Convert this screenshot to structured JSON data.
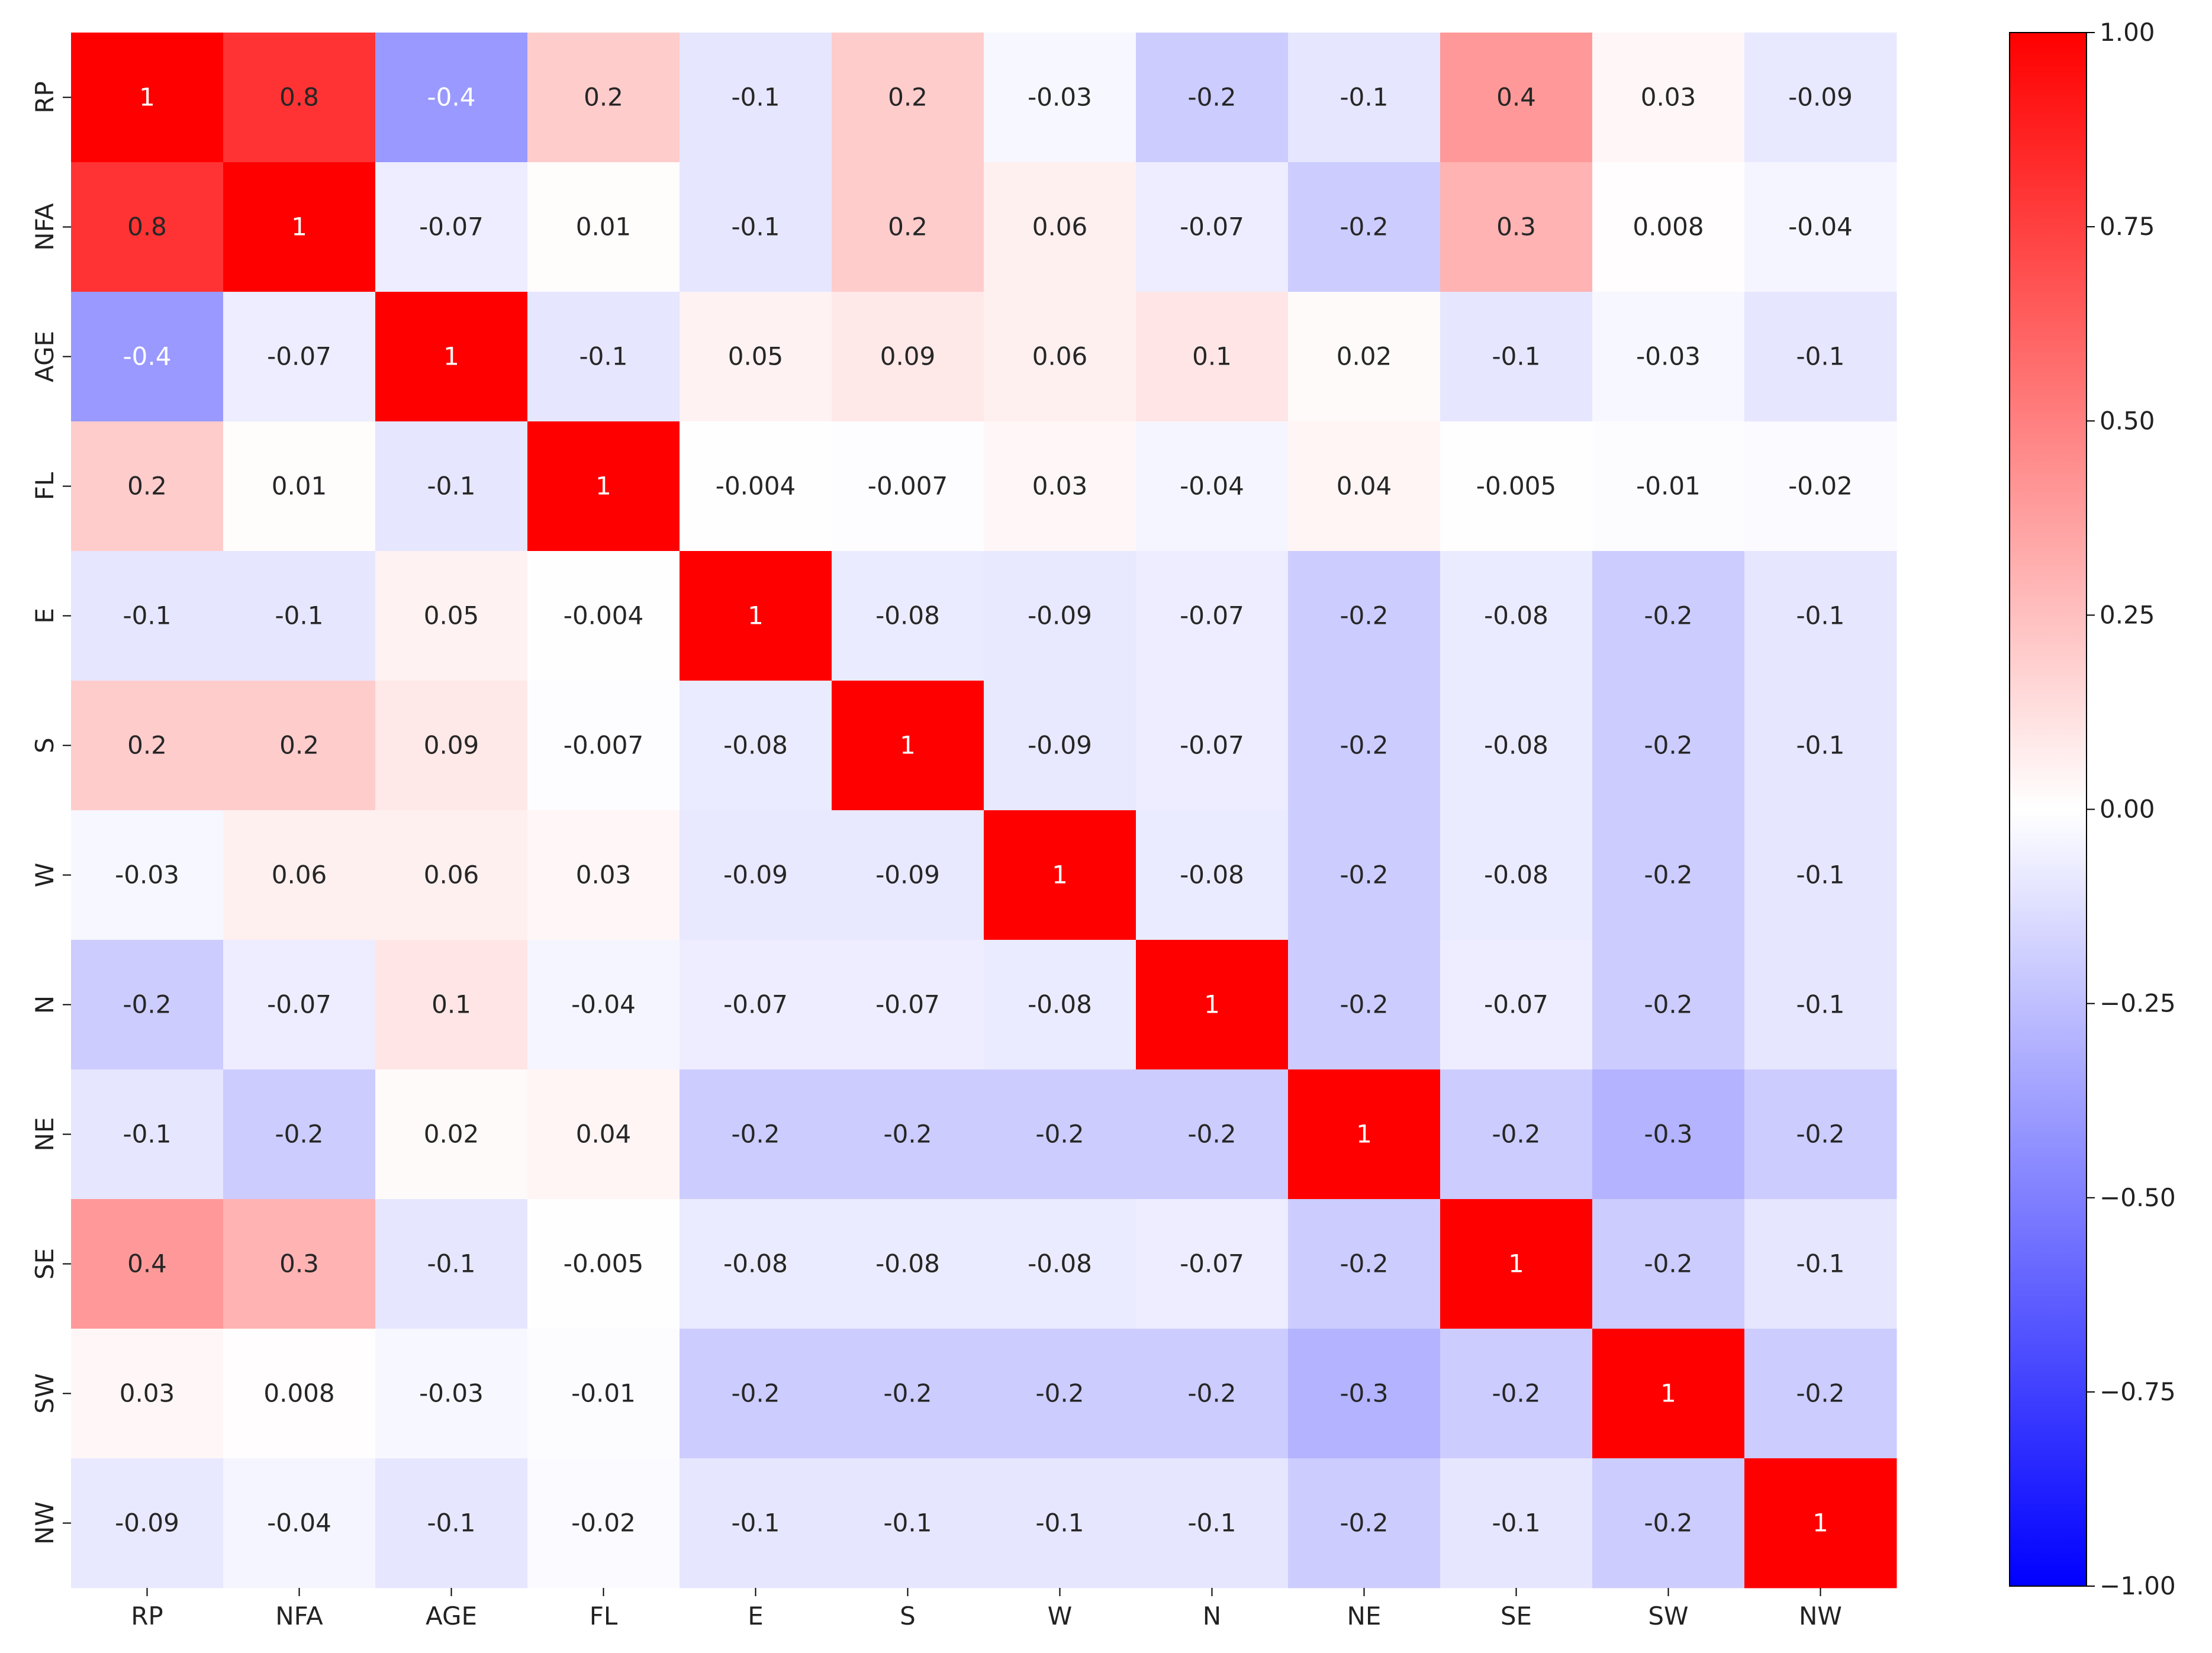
{
  "chart_data": {
    "type": "heatmap",
    "labels": [
      "RP",
      "NFA",
      "AGE",
      "FL",
      "E",
      "S",
      "W",
      "N",
      "NE",
      "SE",
      "SW",
      "NW"
    ],
    "cells": [
      [
        "1",
        "0.8",
        "-0.4",
        "0.2",
        "-0.1",
        "0.2",
        "-0.03",
        "-0.2",
        "-0.1",
        "0.4",
        "0.03",
        "-0.09"
      ],
      [
        "0.8",
        "1",
        "-0.07",
        "0.01",
        "-0.1",
        "0.2",
        "0.06",
        "-0.07",
        "-0.2",
        "0.3",
        "0.008",
        "-0.04"
      ],
      [
        "-0.4",
        "-0.07",
        "1",
        "-0.1",
        "0.05",
        "0.09",
        "0.06",
        "0.1",
        "0.02",
        "-0.1",
        "-0.03",
        "-0.1"
      ],
      [
        "0.2",
        "0.01",
        "-0.1",
        "1",
        "-0.004",
        "-0.007",
        "0.03",
        "-0.04",
        "0.04",
        "-0.005",
        "-0.01",
        "-0.02"
      ],
      [
        "-0.1",
        "-0.1",
        "0.05",
        "-0.004",
        "1",
        "-0.08",
        "-0.09",
        "-0.07",
        "-0.2",
        "-0.08",
        "-0.2",
        "-0.1"
      ],
      [
        "0.2",
        "0.2",
        "0.09",
        "-0.007",
        "-0.08",
        "1",
        "-0.09",
        "-0.07",
        "-0.2",
        "-0.08",
        "-0.2",
        "-0.1"
      ],
      [
        "-0.03",
        "0.06",
        "0.06",
        "0.03",
        "-0.09",
        "-0.09",
        "1",
        "-0.08",
        "-0.2",
        "-0.08",
        "-0.2",
        "-0.1"
      ],
      [
        "-0.2",
        "-0.07",
        "0.1",
        "-0.04",
        "-0.07",
        "-0.07",
        "-0.08",
        "1",
        "-0.2",
        "-0.07",
        "-0.2",
        "-0.1"
      ],
      [
        "-0.1",
        "-0.2",
        "0.02",
        "0.04",
        "-0.2",
        "-0.2",
        "-0.2",
        "-0.2",
        "1",
        "-0.2",
        "-0.3",
        "-0.2"
      ],
      [
        "0.4",
        "0.3",
        "-0.1",
        "-0.005",
        "-0.08",
        "-0.08",
        "-0.08",
        "-0.07",
        "-0.2",
        "1",
        "-0.2",
        "-0.1"
      ],
      [
        "0.03",
        "0.008",
        "-0.03",
        "-0.01",
        "-0.2",
        "-0.2",
        "-0.2",
        "-0.2",
        "-0.3",
        "-0.2",
        "1",
        "-0.2"
      ],
      [
        "-0.09",
        "-0.04",
        "-0.1",
        "-0.02",
        "-0.1",
        "-0.1",
        "-0.1",
        "-0.1",
        "-0.2",
        "-0.1",
        "-0.2",
        "1"
      ]
    ],
    "colorbar": {
      "ticks": [
        "1.00",
        "0.75",
        "0.50",
        "0.25",
        "0.00",
        "−0.25",
        "−0.50",
        "−0.75",
        "−1.00"
      ],
      "vmin": -1.0,
      "vmax": 1.0,
      "colormap": "bwr",
      "low_color": "#0000ff",
      "mid_color": "#ffffff",
      "high_color": "#ff0000"
    },
    "title": "",
    "xlabel": "",
    "ylabel": ""
  }
}
